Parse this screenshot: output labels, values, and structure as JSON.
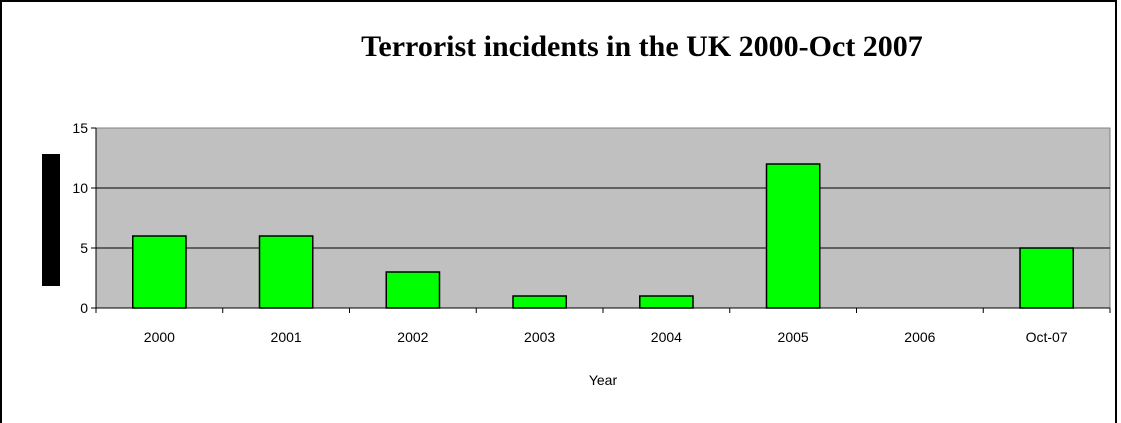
{
  "chart_data": {
    "type": "bar",
    "title": "Terrorist incidents in the UK 2000-Oct 2007",
    "xlabel": "Year",
    "ylabel": "",
    "categories": [
      "2000",
      "2001",
      "2002",
      "2003",
      "2004",
      "2005",
      "2006",
      "Oct-07"
    ],
    "values": [
      6,
      6,
      3,
      1,
      1,
      12,
      0,
      5
    ],
    "ylim": [
      0,
      15
    ],
    "yticks": [
      0,
      5,
      10,
      15
    ],
    "grid": true,
    "legend": "none",
    "colors": {
      "plot_background": "#c0c0c0",
      "bar_fill": "#00ff00",
      "bar_stroke": "#000000"
    }
  }
}
